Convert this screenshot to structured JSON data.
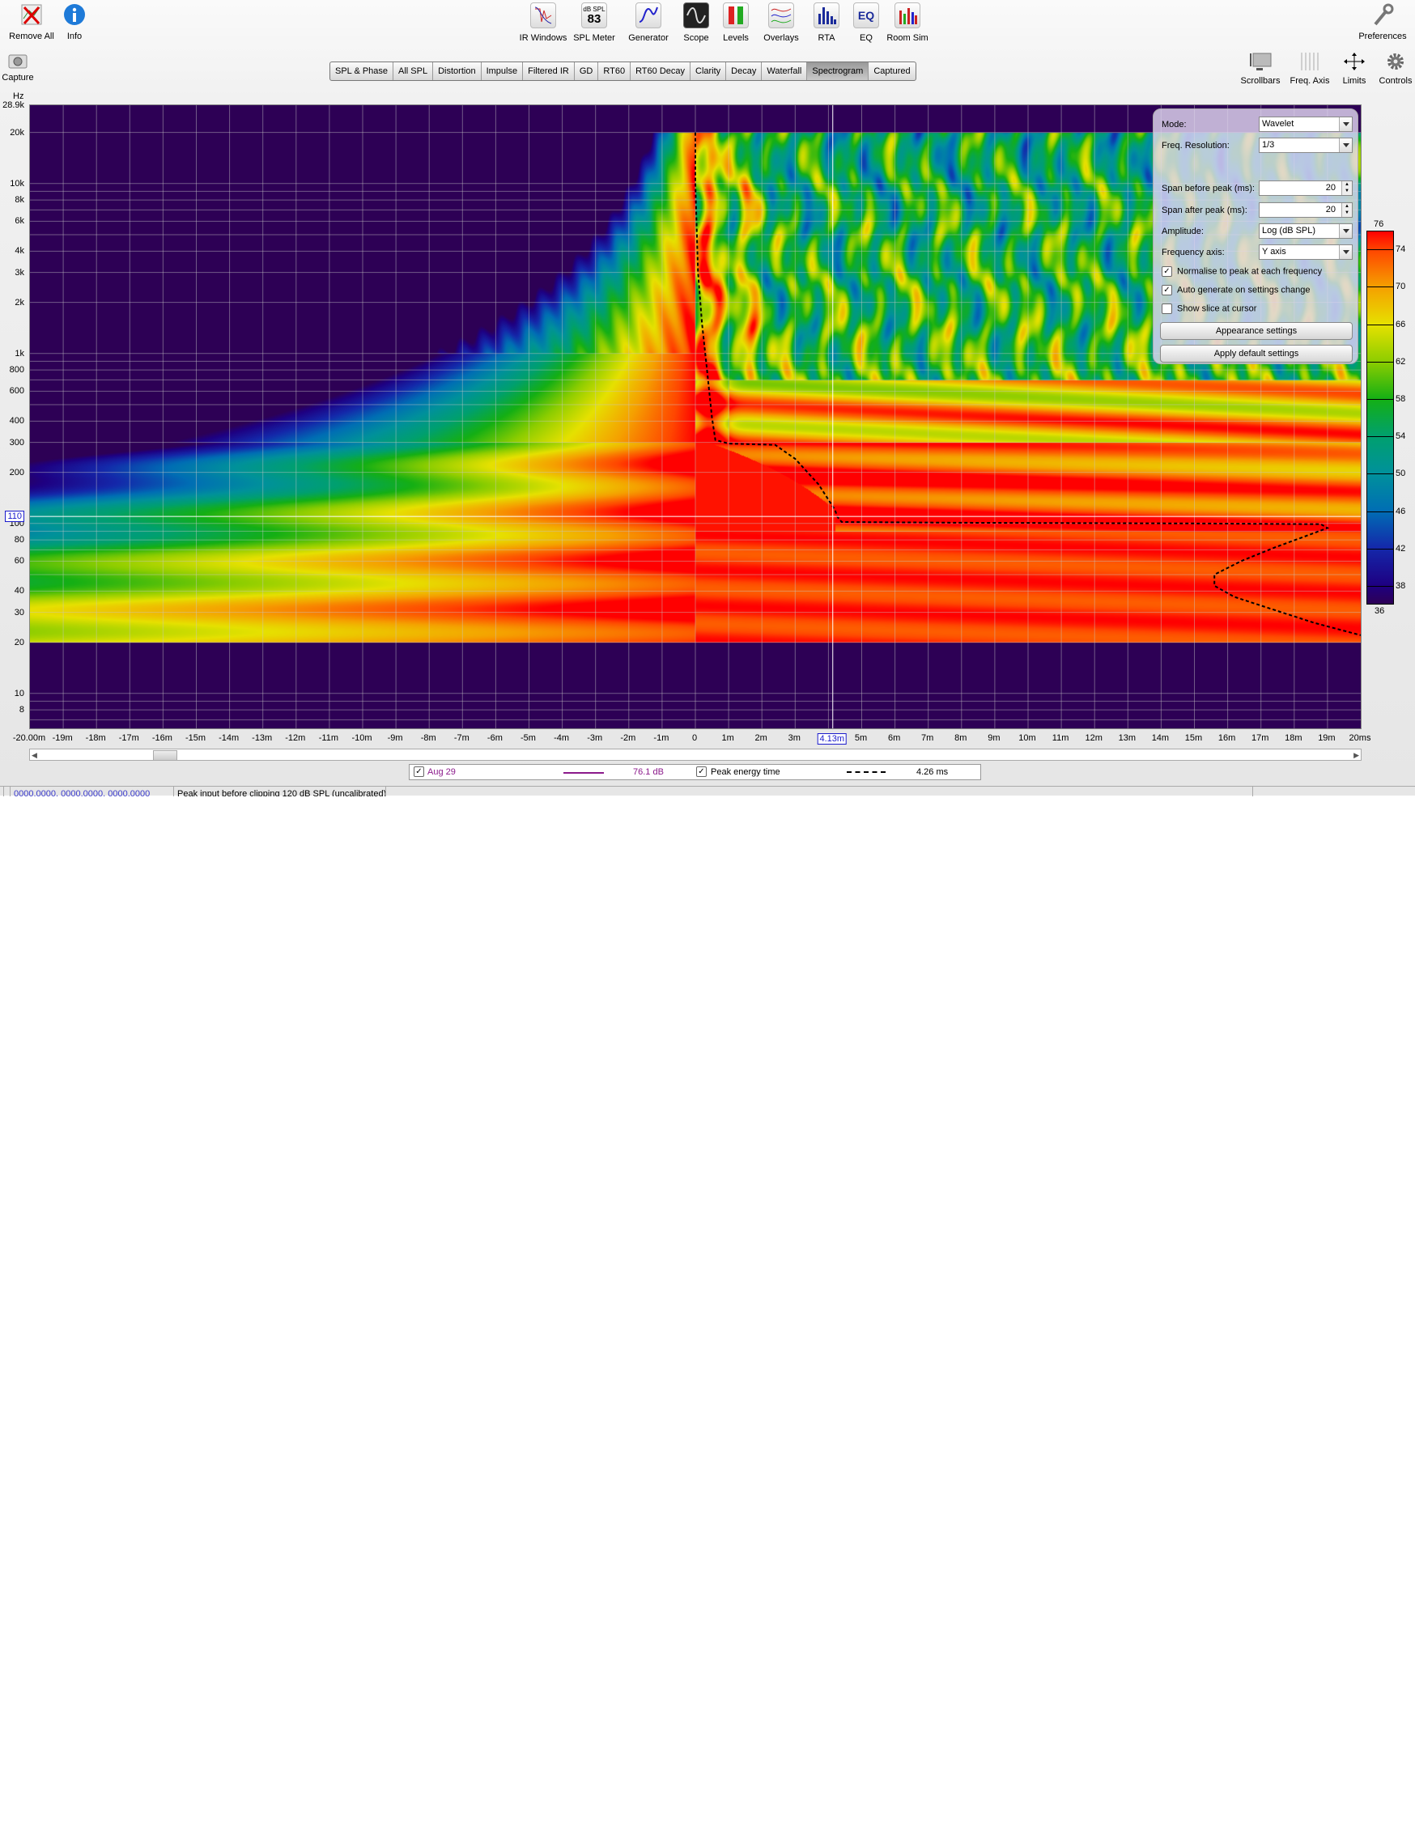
{
  "toolbar": {
    "left": [
      {
        "label": "Remove All",
        "icon": "remove-all-icon"
      },
      {
        "label": "Info",
        "icon": "info-icon"
      }
    ],
    "center": [
      {
        "label": "IR Windows",
        "icon": "ir-windows-icon"
      },
      {
        "label": "SPL Meter",
        "icon": "spl-meter-icon",
        "badge_top": "dB SPL",
        "badge_value": "83"
      },
      {
        "label": "Generator",
        "icon": "generator-icon"
      },
      {
        "label": "Scope",
        "icon": "scope-icon"
      },
      {
        "label": "Levels",
        "icon": "levels-icon"
      },
      {
        "label": "Overlays",
        "icon": "overlays-icon"
      },
      {
        "label": "RTA",
        "icon": "rta-icon"
      },
      {
        "label": "EQ",
        "icon": "eq-icon",
        "badge_value": "EQ"
      },
      {
        "label": "Room Sim",
        "icon": "room-sim-icon"
      }
    ],
    "right": [
      {
        "label": "Preferences",
        "icon": "wrench-icon"
      }
    ]
  },
  "capture": {
    "label": "Capture"
  },
  "view_controls": [
    {
      "label": "Scrollbars"
    },
    {
      "label": "Freq. Axis"
    },
    {
      "label": "Limits"
    },
    {
      "label": "Controls"
    }
  ],
  "tabs": [
    "SPL & Phase",
    "All SPL",
    "Distortion",
    "Impulse",
    "Filtered IR",
    "GD",
    "RT60",
    "RT60 Decay",
    "Clarity",
    "Decay",
    "Waterfall",
    "Spectrogram",
    "Captured"
  ],
  "active_tab": "Spectrogram",
  "plot": {
    "y_unit": "Hz",
    "y_ticks": [
      {
        "label": "28.9k",
        "hz": 28900
      },
      {
        "label": "20k",
        "hz": 20000
      },
      {
        "label": "10k",
        "hz": 10000
      },
      {
        "label": "8k",
        "hz": 8000
      },
      {
        "label": "6k",
        "hz": 6000
      },
      {
        "label": "4k",
        "hz": 4000
      },
      {
        "label": "3k",
        "hz": 3000
      },
      {
        "label": "2k",
        "hz": 2000
      },
      {
        "label": "1k",
        "hz": 1000
      },
      {
        "label": "800",
        "hz": 800
      },
      {
        "label": "600",
        "hz": 600
      },
      {
        "label": "400",
        "hz": 400
      },
      {
        "label": "300",
        "hz": 300
      },
      {
        "label": "200",
        "hz": 200
      },
      {
        "label": "100",
        "hz": 100
      },
      {
        "label": "80",
        "hz": 80
      },
      {
        "label": "60",
        "hz": 60
      },
      {
        "label": "40",
        "hz": 40
      },
      {
        "label": "30",
        "hz": 30
      },
      {
        "label": "20",
        "hz": 20
      },
      {
        "label": "10",
        "hz": 10
      },
      {
        "label": "8",
        "hz": 8
      }
    ],
    "x_ticks": [
      {
        "label": "-20.00m",
        "ms": -20
      },
      {
        "label": "-19m",
        "ms": -19
      },
      {
        "label": "-18m",
        "ms": -18
      },
      {
        "label": "-17m",
        "ms": -17
      },
      {
        "label": "-16m",
        "ms": -16
      },
      {
        "label": "-15m",
        "ms": -15
      },
      {
        "label": "-14m",
        "ms": -14
      },
      {
        "label": "-13m",
        "ms": -13
      },
      {
        "label": "-12m",
        "ms": -12
      },
      {
        "label": "-11m",
        "ms": -11
      },
      {
        "label": "-10m",
        "ms": -10
      },
      {
        "label": "-9m",
        "ms": -9
      },
      {
        "label": "-8m",
        "ms": -8
      },
      {
        "label": "-7m",
        "ms": -7
      },
      {
        "label": "-6m",
        "ms": -6
      },
      {
        "label": "-5m",
        "ms": -5
      },
      {
        "label": "-4m",
        "ms": -4
      },
      {
        "label": "-3m",
        "ms": -3
      },
      {
        "label": "-2m",
        "ms": -2
      },
      {
        "label": "-1m",
        "ms": -1
      },
      {
        "label": "0",
        "ms": 0
      },
      {
        "label": "1m",
        "ms": 1
      },
      {
        "label": "2m",
        "ms": 2
      },
      {
        "label": "3m",
        "ms": 3
      },
      {
        "label": "5m",
        "ms": 5
      },
      {
        "label": "6m",
        "ms": 6
      },
      {
        "label": "7m",
        "ms": 7
      },
      {
        "label": "8m",
        "ms": 8
      },
      {
        "label": "9m",
        "ms": 9
      },
      {
        "label": "10m",
        "ms": 10
      },
      {
        "label": "11m",
        "ms": 11
      },
      {
        "label": "12m",
        "ms": 12
      },
      {
        "label": "13m",
        "ms": 13
      },
      {
        "label": "14m",
        "ms": 14
      },
      {
        "label": "15m",
        "ms": 15
      },
      {
        "label": "16m",
        "ms": 16
      },
      {
        "label": "17m",
        "ms": 17
      },
      {
        "label": "18m",
        "ms": 18
      },
      {
        "label": "19m",
        "ms": 19
      },
      {
        "label": "20ms",
        "ms": 20
      }
    ],
    "cursor": {
      "x_label": "4.13m",
      "x_ms": 4.13,
      "y_label": "110",
      "y_hz": 110
    }
  },
  "controls_panel": {
    "mode_label": "Mode:",
    "mode_value": "Wavelet",
    "freq_res_label": "Freq. Resolution:",
    "freq_res_value": "1/3",
    "span_before_label": "Span before peak (ms):",
    "span_before_value": "20",
    "span_after_label": "Span after peak (ms):",
    "span_after_value": "20",
    "amplitude_label": "Amplitude:",
    "amplitude_value": "Log (dB SPL)",
    "freq_axis_label": "Frequency axis:",
    "freq_axis_value": "Y axis",
    "normalise_label": "Normalise to peak at each frequency",
    "normalise_checked": true,
    "autogen_label": "Auto generate on settings change",
    "autogen_checked": true,
    "slice_label": "Show slice at cursor",
    "slice_checked": false,
    "appearance_button": "Appearance settings",
    "defaults_button": "Apply default settings"
  },
  "colorbar": {
    "max_label": "76",
    "min_label": "36",
    "ticks": [
      {
        "label": "74",
        "db": 74
      },
      {
        "label": "70",
        "db": 70
      },
      {
        "label": "66",
        "db": 66
      },
      {
        "label": "62",
        "db": 62
      },
      {
        "label": "58",
        "db": 58
      },
      {
        "label": "54",
        "db": 54
      },
      {
        "label": "50",
        "db": 50
      },
      {
        "label": "46",
        "db": 46
      },
      {
        "label": "42",
        "db": 42
      },
      {
        "label": "38",
        "db": 38
      }
    ],
    "range_db": [
      36,
      76
    ]
  },
  "legend": {
    "measurement_name": "Aug 29",
    "measurement_checked": true,
    "measurement_color": "#8b1a8b",
    "measurement_value": "76.1 dB",
    "peak_label": "Peak energy time",
    "peak_checked": true,
    "peak_value": "4.26 ms"
  },
  "status": {
    "coords": "0000.0000, 0000.0000, 0000.0000",
    "message": "Peak input before clipping 120 dB SPL (uncalibrated)"
  }
}
